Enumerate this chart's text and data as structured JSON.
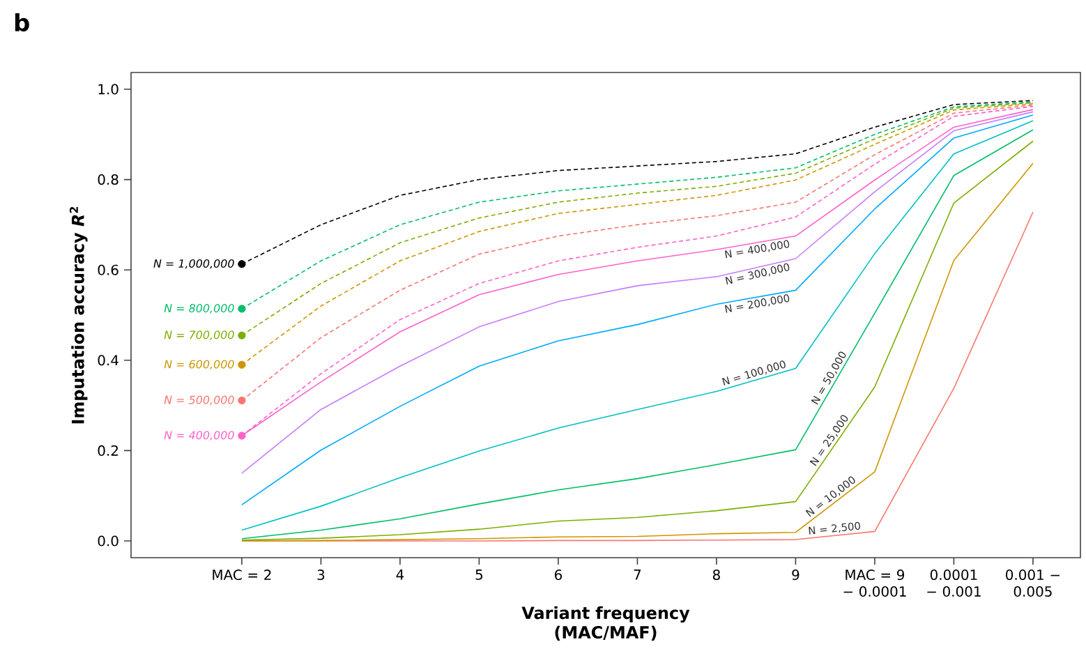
{
  "chart_data": {
    "type": "line",
    "annotations": [
      "b"
    ],
    "xlabel": "Variant frequency (MAC/MAF)",
    "ylabel": "Imputation accuracy *R*$^{2}$",
    "categories": [
      "MAC = 2",
      "3",
      "4",
      "5",
      "6",
      "7",
      "8",
      "9",
      "MAC = 9 − 0.0001",
      "0.0001 − 0.001",
      "0.001 − 0.005"
    ],
    "ylim": [
      -0.037,
      1.037
    ],
    "yticks": [
      {
        "value": 0,
        "label": "0.0"
      },
      {
        "value": 0.2,
        "label": "0.2"
      },
      {
        "value": 0.4,
        "label": "0.4"
      },
      {
        "value": 0.6,
        "label": "0.6"
      },
      {
        "value": 0.8,
        "label": "0.8"
      },
      {
        "value": 1,
        "label": "1.0"
      }
    ],
    "series": [
      {
        "name": "N = 2,500",
        "color": "#f8766d",
        "line_style": "solid",
        "values": [
          0,
          0,
          0,
          0,
          0.001,
          0.001,
          0.002,
          0.003,
          0.021,
          0.338,
          0.728
        ]
      },
      {
        "name": "N = 10,000",
        "color": "#cd9600",
        "line_style": "solid",
        "values": [
          0,
          0.001,
          0.003,
          0.005,
          0.009,
          0.01,
          0.016,
          0.019,
          0.153,
          0.621,
          0.836
        ]
      },
      {
        "name": "N = 25,000",
        "color": "#7cae00",
        "line_style": "solid",
        "values": [
          0.002,
          0.006,
          0.014,
          0.026,
          0.044,
          0.052,
          0.067,
          0.087,
          0.341,
          0.748,
          0.885
        ]
      },
      {
        "name": "N = 50,000",
        "color": "#00be67",
        "line_style": "solid",
        "values": [
          0.005,
          0.024,
          0.049,
          0.082,
          0.113,
          0.138,
          0.169,
          0.202,
          0.504,
          0.809,
          0.91
        ]
      },
      {
        "name": "N = 100,000",
        "color": "#00bfc4",
        "line_style": "solid",
        "values": [
          0.024,
          0.077,
          0.14,
          0.199,
          0.25,
          0.291,
          0.331,
          0.382,
          0.636,
          0.857,
          0.93
        ]
      },
      {
        "name": "N = 200,000",
        "color": "#00a9ff",
        "line_style": "solid",
        "values": [
          0.08,
          0.201,
          0.298,
          0.387,
          0.443,
          0.479,
          0.524,
          0.555,
          0.735,
          0.892,
          0.943
        ]
      },
      {
        "name": "N = 300,000",
        "color": "#c77cff",
        "line_style": "solid",
        "values": [
          0.15,
          0.291,
          0.387,
          0.474,
          0.53,
          0.565,
          0.585,
          0.625,
          0.773,
          0.908,
          0.95
        ]
      },
      {
        "name": "N = 400,000",
        "color": "#ff61cc",
        "line_style": "solid",
        "values": [
          0.233,
          0.352,
          0.463,
          0.545,
          0.59,
          0.62,
          0.645,
          0.675,
          0.799,
          0.916,
          0.955
        ]
      },
      {
        "color": "#ff61cc",
        "line_style": "dashed",
        "values": [
          0.233,
          0.37,
          0.49,
          0.57,
          0.62,
          0.65,
          0.675,
          0.717,
          0.834,
          0.94,
          0.962
        ]
      },
      {
        "name": "N = 500,000",
        "color": "#f8766d",
        "line_style": "dashed",
        "values": [
          0.311,
          0.45,
          0.555,
          0.635,
          0.675,
          0.7,
          0.72,
          0.75,
          0.855,
          0.947,
          0.965
        ]
      },
      {
        "name": "N = 600,000",
        "color": "#cd9600",
        "line_style": "dashed",
        "values": [
          0.39,
          0.52,
          0.62,
          0.685,
          0.725,
          0.745,
          0.765,
          0.799,
          0.878,
          0.954,
          0.968
        ]
      },
      {
        "name": "N = 700,000",
        "color": "#7cae00",
        "line_style": "dashed",
        "values": [
          0.455,
          0.57,
          0.66,
          0.715,
          0.75,
          0.77,
          0.785,
          0.814,
          0.89,
          0.958,
          0.97
        ]
      },
      {
        "name": "N = 800,000",
        "color": "#00be67",
        "line_style": "dashed",
        "values": [
          0.514,
          0.62,
          0.7,
          0.75,
          0.775,
          0.79,
          0.805,
          0.826,
          0.9,
          0.961,
          0.972
        ]
      },
      {
        "name": "N = 1,000,000",
        "color": "#000000",
        "line_style": "dashed",
        "values": [
          0.613,
          0.7,
          0.765,
          0.8,
          0.82,
          0.83,
          0.84,
          0.857,
          0.916,
          0.966,
          0.975
        ]
      }
    ]
  }
}
